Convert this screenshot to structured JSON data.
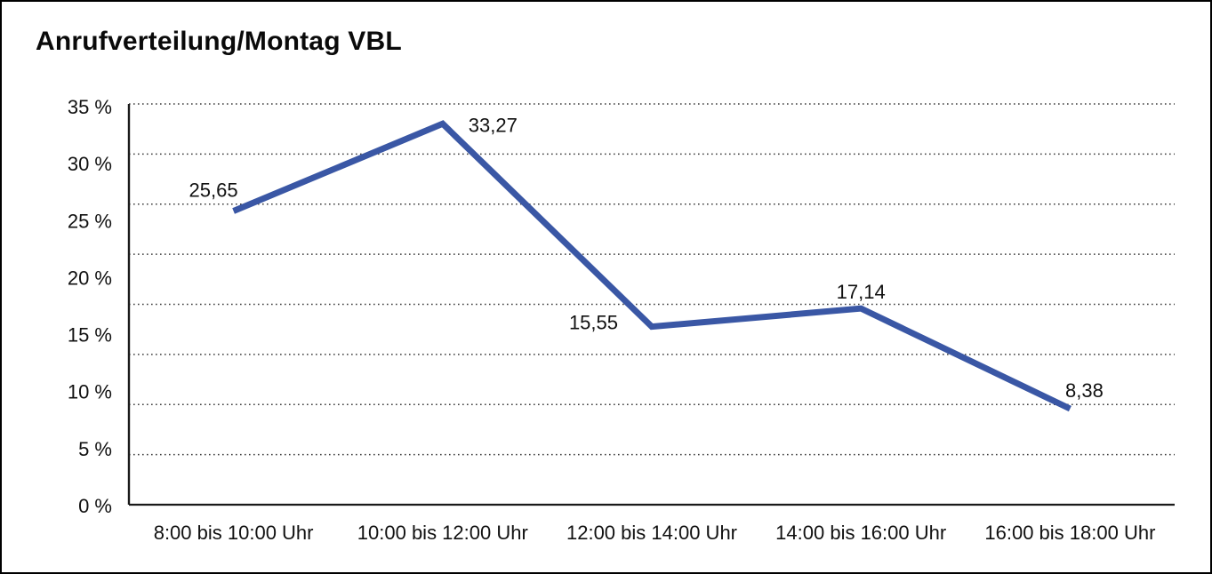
{
  "title": "Anrufverteilung/Montag VBL",
  "chart_data": {
    "type": "line",
    "title": "Anrufverteilung/Montag VBL",
    "categories": [
      "8:00 bis 10:00 Uhr",
      "10:00 bis 12:00 Uhr",
      "12:00 bis 14:00 Uhr",
      "14:00 bis 16:00 Uhr",
      "16:00 bis 18:00 Uhr"
    ],
    "values": [
      25.65,
      33.27,
      15.55,
      17.14,
      8.38
    ],
    "value_labels": [
      "25,65",
      "33,27",
      "15,55",
      "17,14",
      "8,38"
    ],
    "yticks": [
      "35 %",
      "30 %",
      "25 %",
      "20 %",
      "15 %",
      "10 %",
      "5 %",
      "0 %"
    ],
    "ylim": [
      0,
      35
    ],
    "xlabel": "",
    "ylabel": "",
    "legend": "none",
    "grid": "horizontal-dotted",
    "line_color": "#3A57A5",
    "axis_color": "#1a1a1a",
    "grid_color": "#3c3c3c",
    "text_color": "#111111"
  }
}
